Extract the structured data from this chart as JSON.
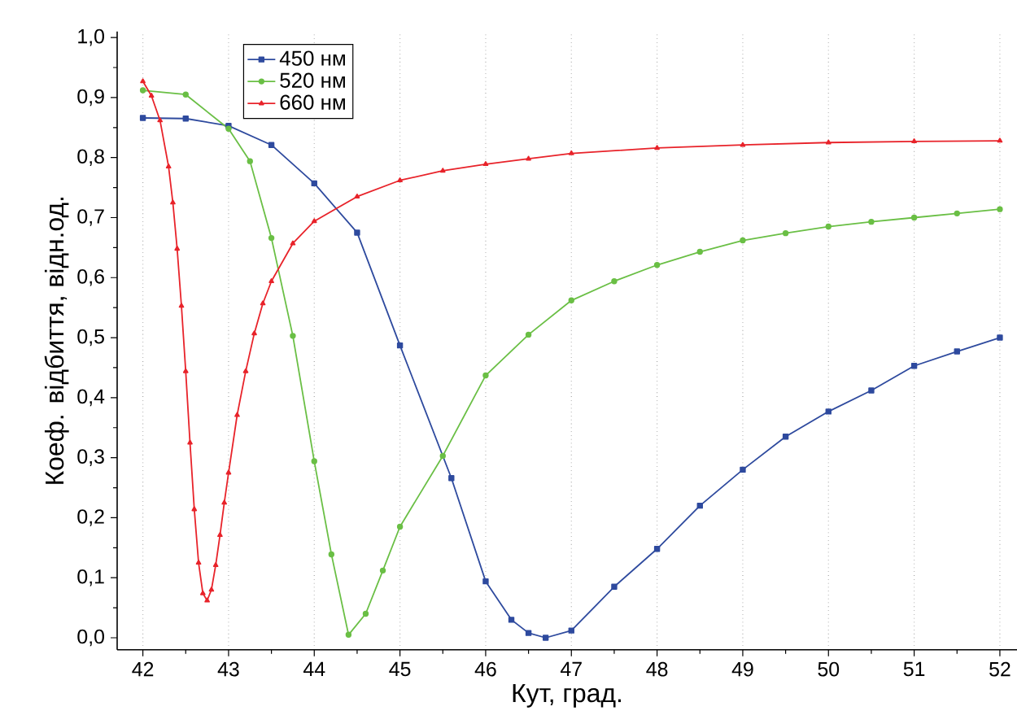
{
  "chart_data": {
    "type": "line",
    "xlabel": "Кут, град.",
    "ylabel": "Коеф. відбиття, відн.од.",
    "xlim": [
      41.7,
      52.2
    ],
    "ylim": [
      -0.02,
      1.01
    ],
    "xticks": [
      42,
      43,
      44,
      45,
      46,
      47,
      48,
      49,
      50,
      51,
      52
    ],
    "yticks": [
      {
        "value": 0,
        "label": "0,0"
      },
      {
        "value": 0.1,
        "label": "0,1"
      },
      {
        "value": 0.2,
        "label": "0,2"
      },
      {
        "value": 0.3,
        "label": "0,3"
      },
      {
        "value": 0.4,
        "label": "0,4"
      },
      {
        "value": 0.5,
        "label": "0,5"
      },
      {
        "value": 0.6,
        "label": "0,6"
      },
      {
        "value": 0.7,
        "label": "0,7"
      },
      {
        "value": 0.8,
        "label": "0,8"
      },
      {
        "value": 0.9,
        "label": "0,9"
      },
      {
        "value": 1.0,
        "label": "1,0"
      }
    ],
    "grid": "x",
    "legend": "top left",
    "line_style": "solid",
    "series": [
      {
        "name": "450 нм",
        "color": "#2e4a9e",
        "marker": "square",
        "x": [
          42,
          42.5,
          43,
          43.5,
          44,
          44.5,
          45,
          45.6,
          46,
          46.3,
          46.5,
          46.7,
          47,
          47.5,
          48,
          48.5,
          49,
          49.5,
          50,
          50.5,
          51,
          51.5,
          52
        ],
        "values": [
          0.866,
          0.865,
          0.853,
          0.821,
          0.757,
          0.675,
          0.487,
          0.266,
          0.094,
          0.03,
          0.008,
          0.0,
          0.012,
          0.085,
          0.148,
          0.22,
          0.28,
          0.335,
          0.377,
          0.412,
          0.453,
          0.477,
          0.5
        ]
      },
      {
        "name": "520 нм",
        "color": "#6abf45",
        "marker": "circle",
        "x": [
          42,
          42.5,
          43,
          43.25,
          43.5,
          43.75,
          44,
          44.2,
          44.4,
          44.6,
          44.8,
          45,
          45.5,
          46,
          46.5,
          47,
          47.5,
          48,
          48.5,
          49,
          49.5,
          50,
          50.5,
          51,
          51.5,
          52
        ],
        "values": [
          0.912,
          0.905,
          0.848,
          0.794,
          0.666,
          0.503,
          0.294,
          0.139,
          0.005,
          0.04,
          0.112,
          0.185,
          0.303,
          0.437,
          0.505,
          0.562,
          0.594,
          0.621,
          0.643,
          0.662,
          0.674,
          0.685,
          0.693,
          0.7,
          0.707,
          0.714
        ]
      },
      {
        "name": "660 нм",
        "color": "#e8232a",
        "marker": "triangle",
        "x": [
          42,
          42.1,
          42.2,
          42.3,
          42.35,
          42.4,
          42.45,
          42.5,
          42.55,
          42.6,
          42.65,
          42.7,
          42.75,
          42.8,
          42.85,
          42.9,
          42.95,
          43,
          43.1,
          43.2,
          43.3,
          43.4,
          43.5,
          43.75,
          44,
          44.5,
          45,
          45.5,
          46,
          46.5,
          47,
          48,
          49,
          50,
          51,
          52
        ],
        "values": [
          0.927,
          0.903,
          0.862,
          0.785,
          0.725,
          0.648,
          0.553,
          0.444,
          0.325,
          0.214,
          0.125,
          0.074,
          0.062,
          0.08,
          0.121,
          0.171,
          0.225,
          0.275,
          0.371,
          0.444,
          0.507,
          0.557,
          0.594,
          0.657,
          0.694,
          0.735,
          0.762,
          0.778,
          0.789,
          0.798,
          0.807,
          0.816,
          0.821,
          0.825,
          0.827,
          0.828
        ]
      }
    ]
  }
}
